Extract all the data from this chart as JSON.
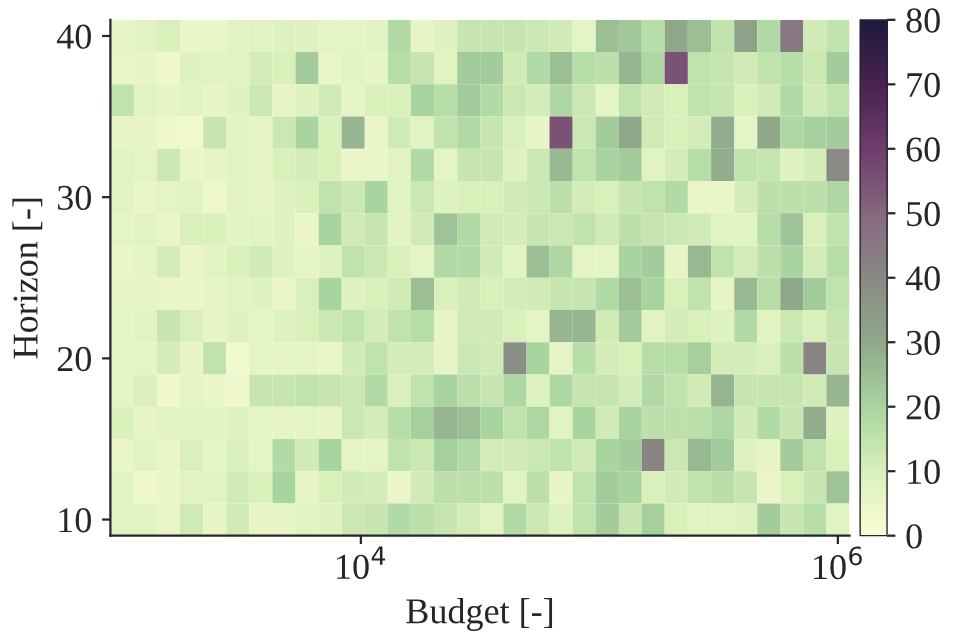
{
  "chart_data": {
    "type": "heatmap",
    "xlabel": "Budget [-]",
    "ylabel": "Horizon [-]",
    "x": [
      1000,
      1250,
      1560,
      1950,
      2440,
      3050,
      3810,
      4760,
      5950,
      7430,
      9290,
      11600,
      14500,
      18100,
      22700,
      28300,
      35400,
      44300,
      55300,
      69100,
      86400,
      108000,
      135000,
      168000,
      210000,
      263000,
      329000,
      411000,
      513000,
      641000,
      801000,
      1000000
    ],
    "xlim": [
      891,
      1120000
    ],
    "ylim": [
      9,
      41
    ],
    "xticks": [
      {
        "value": 10000,
        "label": "10$^{4}$"
      },
      {
        "value": 1000000,
        "label": "10$^{6}$"
      }
    ],
    "yticks": [
      10,
      20,
      30,
      40
    ],
    "log": "x",
    "clim": [
      0,
      80
    ],
    "cticks": [
      0,
      10,
      20,
      30,
      40,
      50,
      60,
      70,
      80
    ],
    "colors": [
      "#fbfdd7",
      "#d9f0bb",
      "#a8d4a0",
      "#8fa88a",
      "#8a8a85",
      "#86687f",
      "#6e3d6d",
      "#4a2350",
      "#1f1a3d"
    ],
    "cells": [
      [
        6,
        8,
        10,
        5,
        5,
        8,
        8,
        9,
        9,
        7,
        7,
        8,
        18,
        6,
        9,
        14,
        14,
        14,
        13,
        12,
        7,
        25,
        23,
        17,
        30,
        25,
        15,
        32,
        18,
        45,
        12,
        15
      ],
      [
        5,
        6,
        4,
        9,
        8,
        8,
        11,
        10,
        22,
        5,
        8,
        6,
        17,
        14,
        8,
        22,
        22,
        12,
        18,
        25,
        17,
        16,
        27,
        19,
        55,
        15,
        14,
        12,
        15,
        17,
        13,
        22
      ],
      [
        15,
        8,
        6,
        8,
        6,
        9,
        13,
        6,
        9,
        12,
        7,
        10,
        10,
        20,
        17,
        22,
        18,
        13,
        11,
        19,
        13,
        7,
        15,
        12,
        10,
        15,
        14,
        10,
        12,
        18,
        12,
        15
      ],
      [
        6,
        6,
        4,
        3,
        14,
        8,
        6,
        13,
        20,
        10,
        27,
        5,
        12,
        8,
        15,
        18,
        14,
        10,
        6,
        55,
        13,
        22,
        30,
        12,
        10,
        11,
        29,
        7,
        30,
        19,
        21,
        22
      ],
      [
        8,
        7,
        13,
        5,
        6,
        8,
        6,
        10,
        11,
        10,
        5,
        5,
        8,
        18,
        7,
        14,
        14,
        9,
        13,
        26,
        15,
        20,
        22,
        8,
        11,
        17,
        29,
        15,
        14,
        9,
        11,
        40
      ],
      [
        8,
        5,
        7,
        8,
        4,
        8,
        6,
        9,
        10,
        15,
        13,
        20,
        8,
        13,
        9,
        10,
        10,
        12,
        13,
        16,
        11,
        10,
        14,
        15,
        18,
        5,
        5,
        11,
        16,
        16,
        16,
        19
      ],
      [
        7,
        8,
        5,
        10,
        10,
        8,
        8,
        9,
        5,
        20,
        12,
        14,
        8,
        12,
        24,
        18,
        12,
        11,
        14,
        13,
        15,
        12,
        16,
        14,
        13,
        12,
        8,
        8,
        17,
        24,
        10,
        15
      ],
      [
        5,
        7,
        11,
        5,
        8,
        10,
        12,
        9,
        7,
        9,
        15,
        13,
        10,
        7,
        18,
        18,
        12,
        8,
        25,
        19,
        7,
        7,
        20,
        22,
        6,
        26,
        15,
        11,
        16,
        20,
        11,
        17
      ],
      [
        6,
        6,
        5,
        5,
        6,
        8,
        9,
        5,
        10,
        20,
        9,
        10,
        12,
        25,
        10,
        12,
        10,
        11,
        12,
        14,
        14,
        18,
        25,
        20,
        10,
        15,
        6,
        26,
        17,
        30,
        22,
        15
      ],
      [
        7,
        8,
        14,
        10,
        6,
        9,
        7,
        9,
        10,
        13,
        15,
        11,
        15,
        17,
        6,
        12,
        12,
        10,
        7,
        27,
        27,
        12,
        22,
        8,
        11,
        10,
        9,
        18,
        8,
        13,
        10,
        14
      ],
      [
        7,
        7,
        11,
        6,
        15,
        3,
        7,
        6,
        7,
        5,
        12,
        15,
        11,
        11,
        6,
        13,
        12,
        38,
        20,
        7,
        17,
        11,
        10,
        17,
        17,
        21,
        11,
        11,
        10,
        16,
        42,
        14
      ],
      [
        7,
        10,
        4,
        7,
        5,
        4,
        14,
        14,
        15,
        14,
        13,
        18,
        10,
        15,
        20,
        16,
        14,
        19,
        9,
        19,
        14,
        14,
        11,
        18,
        15,
        12,
        27,
        14,
        14,
        14,
        12,
        27
      ],
      [
        10,
        6,
        8,
        8,
        8,
        9,
        7,
        6,
        7,
        6,
        13,
        11,
        17,
        21,
        27,
        25,
        20,
        15,
        19,
        8,
        20,
        12,
        20,
        16,
        16,
        16,
        19,
        12,
        18,
        14,
        29,
        9
      ],
      [
        5,
        8,
        5,
        10,
        7,
        10,
        7,
        18,
        12,
        20,
        7,
        7,
        15,
        13,
        21,
        18,
        11,
        12,
        13,
        15,
        12,
        20,
        22,
        42,
        13,
        26,
        22,
        9,
        6,
        22,
        15,
        10
      ],
      [
        8,
        4,
        5,
        8,
        8,
        12,
        10,
        20,
        6,
        10,
        12,
        11,
        5,
        12,
        16,
        16,
        16,
        8,
        16,
        6,
        15,
        22,
        20,
        10,
        12,
        15,
        17,
        14,
        5,
        10,
        14,
        24
      ],
      [
        8,
        8,
        5,
        12,
        6,
        12,
        6,
        6,
        8,
        9,
        13,
        14,
        18,
        16,
        14,
        11,
        8,
        18,
        13,
        9,
        15,
        22,
        14,
        21,
        10,
        8,
        8,
        9,
        22,
        14,
        17,
        8
      ]
    ]
  }
}
